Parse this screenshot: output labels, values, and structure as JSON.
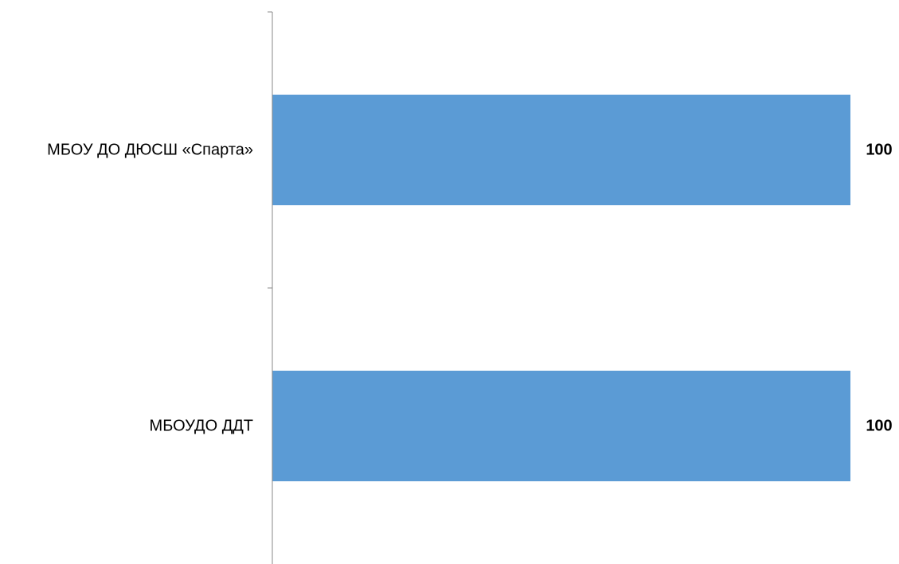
{
  "chart_data": {
    "type": "bar",
    "orientation": "horizontal",
    "categories": [
      "МБОУ ДО ДЮСШ «Спарта»",
      "МБОУДО ДДТ"
    ],
    "series": [
      {
        "values": [
          100,
          100
        ]
      }
    ],
    "data_labels": [
      "100",
      "100"
    ],
    "xlim": [
      0,
      100
    ],
    "bar_color": "#5b9bd5",
    "axis_color": "#888888",
    "grid": false,
    "legend": "none"
  }
}
